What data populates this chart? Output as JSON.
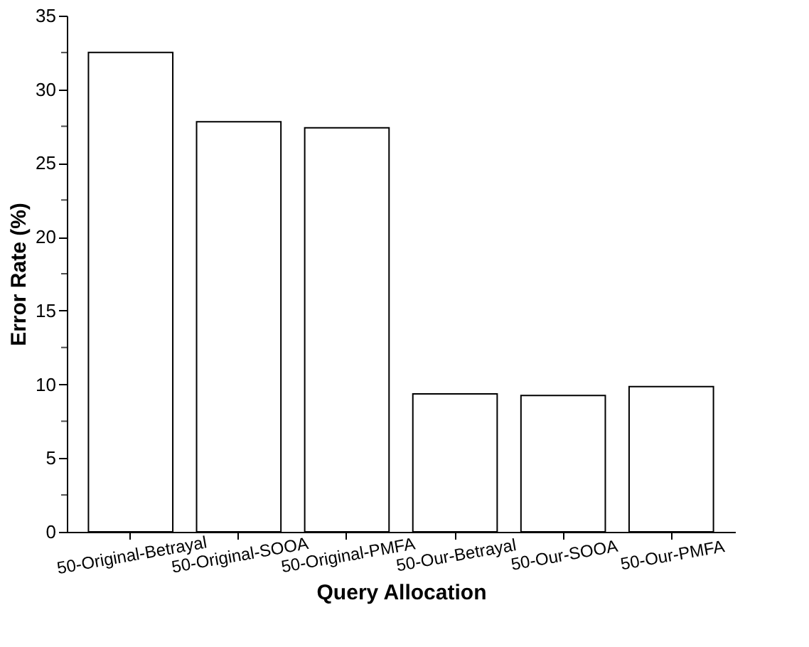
{
  "chart_data": {
    "type": "bar",
    "xlabel": "Query Allocation",
    "ylabel": "Error Rate (%)",
    "categories": [
      "50-Original-Betrayal",
      "50-Original-SOOA",
      "50-Original-PMFA",
      "50-Our-Betrayal",
      "50-Our-SOOA",
      "50-Our-PMFA"
    ],
    "values": [
      32.5,
      27.8,
      27.4,
      9.35,
      9.25,
      9.85
    ],
    "color": "#ffffff",
    "ylim": [
      0,
      35
    ],
    "yticks": [
      0,
      {
        "value": 2.5,
        "label": null
      },
      5,
      {
        "value": 7.5,
        "label": null
      },
      10,
      {
        "value": 12.5,
        "label": null
      },
      15,
      {
        "value": 17.5,
        "label": null
      },
      20,
      {
        "value": 22.5,
        "label": null
      },
      25,
      {
        "value": 27.5,
        "label": null
      },
      30,
      {
        "value": 32.5,
        "label": null
      },
      35
    ],
    "grid": false
  }
}
